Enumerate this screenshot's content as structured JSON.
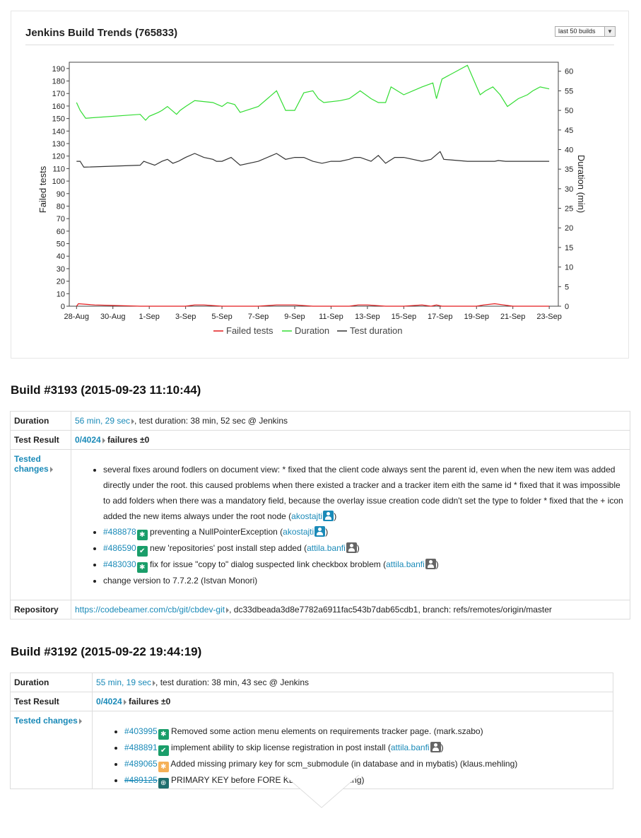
{
  "panel": {
    "title": "Jenkins Build Trends (765833)",
    "range_select": "last 50 builds"
  },
  "chart_data": {
    "type": "line",
    "ylabel": "Failed tests",
    "y2label": "Duration (min)",
    "ylim": [
      0,
      195
    ],
    "y2lim": [
      0,
      62.3
    ],
    "yticks": [
      0,
      10,
      20,
      30,
      40,
      50,
      60,
      70,
      80,
      90,
      100,
      110,
      120,
      130,
      140,
      150,
      160,
      170,
      180,
      190
    ],
    "y2ticks": [
      0,
      5,
      10,
      15,
      20,
      25,
      30,
      35,
      40,
      45,
      50,
      55,
      60
    ],
    "xticks": [
      "28-Aug",
      "30-Aug",
      "1-Sep",
      "3-Sep",
      "5-Sep",
      "7-Sep",
      "9-Sep",
      "11-Sep",
      "13-Sep",
      "15-Sep",
      "17-Sep",
      "19-Sep",
      "21-Sep",
      "23-Sep"
    ],
    "xlim": [
      -0.4,
      26.5
    ],
    "grid": false,
    "legend_position": "bottom",
    "series": [
      {
        "name": "Failed tests",
        "color": "#e31a1c",
        "axis": "left",
        "x": [
          0,
          0.1,
          1,
          3.5,
          4,
          5.5,
          6,
          6.5,
          7,
          8,
          9,
          10,
          11,
          12,
          13,
          14,
          15,
          15.5,
          16,
          17,
          18,
          19,
          19.5,
          19.8,
          20.1,
          22,
          22.4,
          23,
          23.5,
          24,
          25,
          26
        ],
        "y": [
          0,
          2,
          1,
          0,
          0,
          0,
          0,
          1,
          1,
          0,
          0,
          0,
          1,
          1,
          0,
          0,
          0,
          1,
          1,
          0,
          0,
          1,
          0,
          1,
          0,
          0,
          1,
          2,
          1,
          0,
          0,
          0
        ]
      },
      {
        "name": "Duration",
        "color": "#33dd33",
        "axis": "right",
        "x": [
          0,
          0.2,
          0.5,
          3.5,
          3.8,
          4,
          4.5,
          4.7,
          5,
          5.5,
          5.7,
          6,
          6.5,
          7.5,
          8,
          8.3,
          8.7,
          9,
          10,
          11,
          11.5,
          12,
          12.5,
          13,
          13.3,
          13.6,
          14.5,
          15,
          15.3,
          15.6,
          16.2,
          16.6,
          17,
          17.3,
          18,
          19,
          19.6,
          19.8,
          20.1,
          21.5,
          22.2,
          22.5,
          22.9,
          23.3,
          23.7,
          24.3,
          24.8,
          25.1,
          25.5,
          26
        ],
        "y": [
          52,
          50,
          48,
          49,
          47.5,
          48.5,
          49.5,
          50,
          51,
          49,
          50,
          51,
          52.5,
          52,
          51,
          52,
          51.5,
          49.5,
          51,
          55,
          50,
          50,
          54.5,
          55,
          53,
          52,
          52.5,
          53,
          54,
          55,
          53,
          52,
          52,
          56,
          54,
          56,
          57,
          53,
          58,
          61.5,
          54,
          55,
          56,
          54,
          51,
          53,
          54,
          55,
          56,
          55.5
        ]
      },
      {
        "name": "Test duration",
        "color": "#333333",
        "axis": "right",
        "x": [
          0,
          0.2,
          0.4,
          3.5,
          3.7,
          4,
          4.3,
          4.7,
          5,
          5.3,
          5.6,
          6,
          6.5,
          7,
          7.5,
          7.7,
          8,
          8.5,
          9,
          10,
          11,
          11.5,
          12,
          12.5,
          13,
          13.5,
          14,
          14.5,
          15,
          15.3,
          15.6,
          16.2,
          16.6,
          17,
          17.5,
          18,
          19,
          19.5,
          20,
          20.2,
          21.5,
          22.5,
          23,
          23.2,
          23.6,
          24,
          24.5,
          24.8,
          25.1,
          25.5,
          26
        ],
        "y": [
          37,
          37,
          35.5,
          36,
          37,
          36.5,
          36,
          37,
          37.5,
          36.5,
          37,
          38,
          39,
          38,
          37.5,
          37,
          37,
          38,
          36,
          37,
          39,
          37.5,
          38,
          38,
          37,
          36.5,
          37,
          37,
          37.5,
          38,
          38,
          37,
          38.5,
          36.5,
          38,
          38,
          37,
          37.5,
          39.5,
          37.5,
          37,
          37,
          37,
          37.2,
          37,
          37,
          37,
          37,
          37,
          37,
          37
        ]
      }
    ]
  },
  "builds": [
    {
      "heading": "Build #3193 (2015-09-23 11:10:44)",
      "duration_label": "Duration",
      "duration_link": "56 min, 29 sec",
      "duration_rest": ", test duration: 38 min, 52 sec @ Jenkins",
      "test_result_label": "Test Result",
      "test_result_link": "0/4024",
      "test_result_rest": " failures ±0",
      "tested_changes_label": "Tested changes",
      "changes": [
        {
          "id": "",
          "badge": "",
          "text": "several fixes around fodlers on document view: * fixed that the client code always sent the parent id, even when the new item was added directly under the root. this caused problems when there existed a tracker and a tracker item eith the same id * fixed that it was impossible to add folders when there was a mandatory field, because the overlay issue creation code didn't set the type to folder * fixed that the + icon added the new items always under the root node (",
          "user": "akostajti",
          "user_color": "blue",
          "tail": ")"
        },
        {
          "id": "#488878",
          "badge": "bug",
          "text": " preventing a NullPointerException (",
          "user": "akostajti",
          "user_color": "blue",
          "tail": ")"
        },
        {
          "id": "#486590",
          "badge": "check",
          "text": " new 'repositories' post install step added (",
          "user": "attila.banfi",
          "user_color": "gray",
          "tail": ")"
        },
        {
          "id": "#483030",
          "badge": "bug",
          "text": " fix for issue \"copy to\" dialog suspected link checkbox broblem (",
          "user": "attila.banfi",
          "user_color": "gray",
          "tail": ")"
        },
        {
          "id": "",
          "badge": "",
          "text": "change version to 7.7.2.2 (Istvan Monori)",
          "user": "",
          "user_color": "",
          "tail": ""
        }
      ],
      "repository_label": "Repository",
      "repository_link": "https://codebeamer.com/cb/git/cbdev-git",
      "repository_rest": ", dc33dbeada3d8e7782a6911fac543b7dab65cdb1, branch: refs/remotes/origin/master"
    },
    {
      "heading": "Build #3192 (2015-09-22 19:44:19)",
      "duration_label": "Duration",
      "duration_link": "55 min, 19 sec",
      "duration_rest": ", test duration: 38 min, 43 sec @ Jenkins",
      "test_result_label": "Test Result",
      "test_result_link": "0/4024",
      "test_result_rest": " failures ±0",
      "tested_changes_label": "Tested changes",
      "changes": [
        {
          "id": "#403995",
          "badge": "bug",
          "text": " Removed some action menu elements on requirements tracker page. (mark.szabo)",
          "user": "",
          "user_color": "",
          "tail": ""
        },
        {
          "id": "#488891",
          "badge": "check",
          "text": " implement ability to skip license registration in post install (",
          "user": "attila.banfi",
          "user_color": "gray",
          "tail": ")"
        },
        {
          "id": "#489065",
          "badge": "bug-orange",
          "text": " Added missing primary key for scm_submodule (in database and in mybatis) (klaus.mehling)",
          "user": "",
          "user_color": "",
          "tail": ""
        },
        {
          "id": "#489125",
          "badge": "key",
          "text": " PRIMARY KEY before FORE",
          "user": "",
          "user_color": "",
          "tail": "  KEYs (klaus.mehling)"
        }
      ]
    }
  ]
}
